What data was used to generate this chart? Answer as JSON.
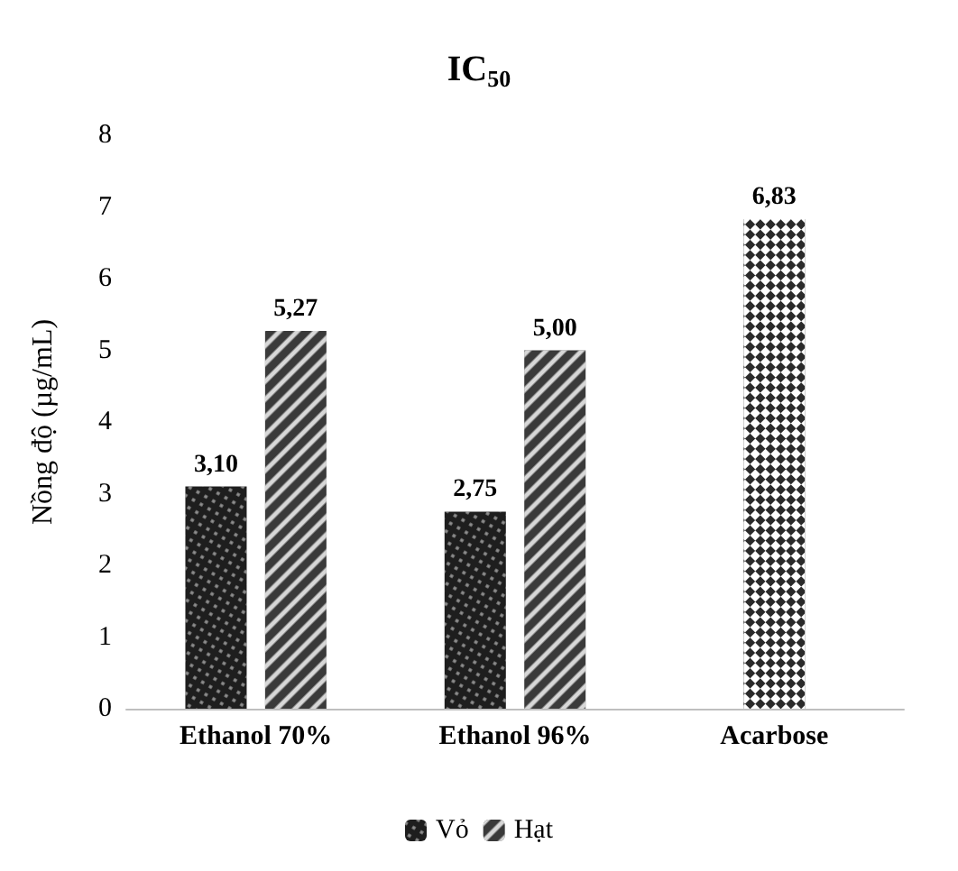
{
  "chart_data": {
    "type": "bar",
    "title": "IC$_{50}$",
    "ylabel": "Nồng độ (µg/mL)",
    "categories": [
      "Ethanol 70%",
      "Ethanol 96%",
      "Acarbose"
    ],
    "series": [
      {
        "name": "Vỏ",
        "color": "#1e1e1e",
        "values": [
          3.1,
          2.75,
          null
        ],
        "value_labels": [
          "3,10",
          "2,75",
          null
        ]
      },
      {
        "name": "Hạt",
        "color": "#3a3a3a",
        "values": [
          5.27,
          5.0,
          null
        ],
        "value_labels": [
          "5,27",
          "5,00",
          null
        ]
      },
      {
        "color": "#2a2a2a",
        "values": [
          null,
          null,
          6.83
        ],
        "value_labels": [
          null,
          null,
          "6,83"
        ]
      }
    ],
    "ylim": [
      0,
      8
    ],
    "yticks": [
      0,
      1,
      2,
      3,
      4,
      5,
      6,
      7,
      8
    ],
    "legend": "bottom"
  }
}
